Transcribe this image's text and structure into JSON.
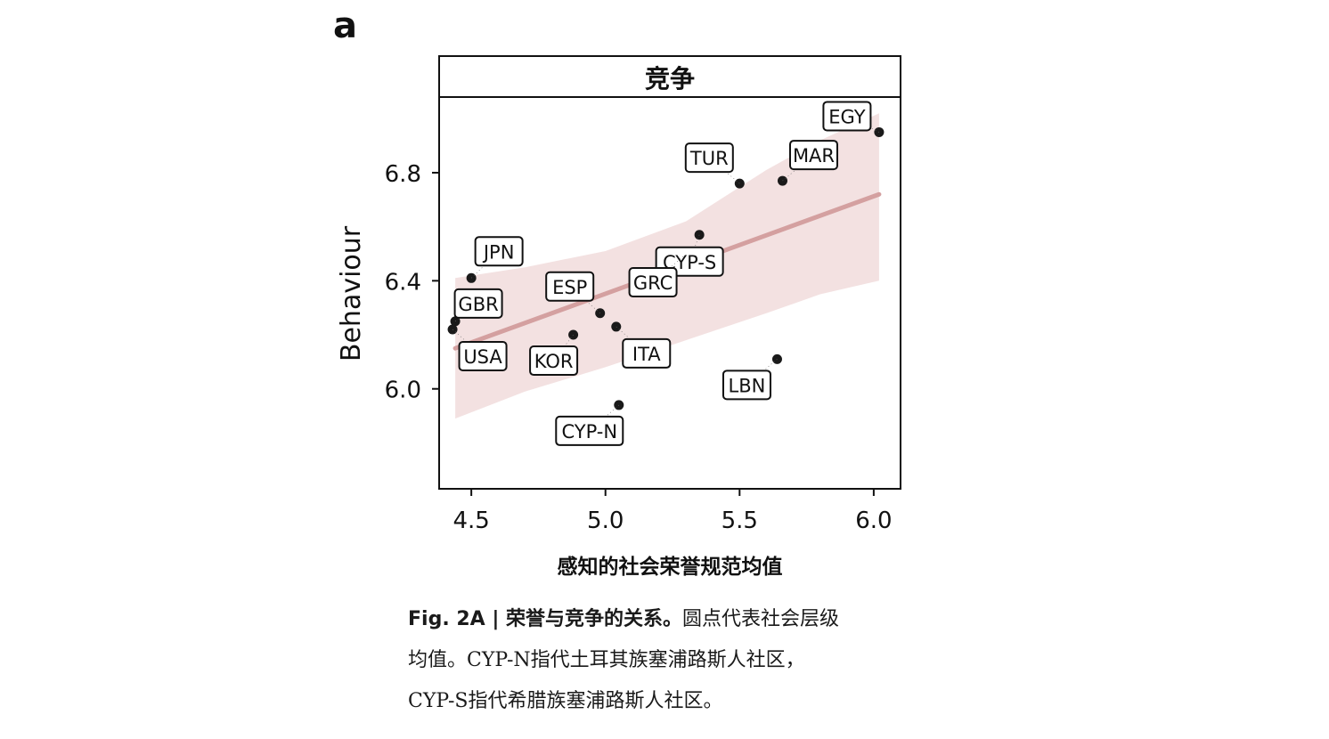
{
  "panel_letter": "a",
  "caption": {
    "fig_label": "Fig. 2A | ",
    "fig_title": "荣誉与竞争的关系。",
    "line1_rest": "圆点代表社会层级",
    "line2": "均值。CYP-N指代土耳其族塞浦路斯人社区，",
    "line3": "CYP-S指代希腊族塞浦路斯人社区。"
  },
  "chart_data": {
    "type": "scatter",
    "title": "竞争",
    "xlabel": "感知的社会荣誉规范均值",
    "ylabel": "Behaviour",
    "xlim": [
      4.38,
      6.1
    ],
    "ylim": [
      5.63,
      7.08
    ],
    "xticks": [
      4.5,
      5.0,
      5.5,
      6.0
    ],
    "xtick_labels": [
      "4.5",
      "5.0",
      "5.5",
      "6.0"
    ],
    "yticks": [
      6.0,
      6.4,
      6.8
    ],
    "ytick_labels": [
      "6.0",
      "6.4",
      "6.8"
    ],
    "grid": false,
    "points": [
      {
        "label": "EGY",
        "x": 6.02,
        "y": 6.95
      },
      {
        "label": "TUR",
        "x": 5.5,
        "y": 6.76
      },
      {
        "label": "MAR",
        "x": 5.66,
        "y": 6.77
      },
      {
        "label": "CYP-S",
        "x": 5.35,
        "y": 6.57
      },
      {
        "label": "GRC",
        "x": 5.29,
        "y": 6.49
      },
      {
        "label": "JPN",
        "x": 4.5,
        "y": 6.41
      },
      {
        "label": "GBR",
        "x": 4.44,
        "y": 6.25
      },
      {
        "label": "USA",
        "x": 4.43,
        "y": 6.22
      },
      {
        "label": "ESP",
        "x": 4.98,
        "y": 6.28
      },
      {
        "label": "ITA",
        "x": 5.04,
        "y": 6.23
      },
      {
        "label": "KOR",
        "x": 4.88,
        "y": 6.2
      },
      {
        "label": "LBN",
        "x": 5.64,
        "y": 6.11
      },
      {
        "label": "CYP-N",
        "x": 5.05,
        "y": 5.94
      }
    ],
    "fit_line": {
      "x": [
        4.44,
        6.02
      ],
      "y": [
        6.15,
        6.72
      ]
    },
    "confidence_band": {
      "x": [
        4.44,
        4.7,
        5.0,
        5.3,
        5.6,
        5.8,
        6.02
      ],
      "upper": [
        6.41,
        6.45,
        6.51,
        6.62,
        6.81,
        6.92,
        7.02
      ],
      "lower": [
        5.89,
        5.99,
        6.08,
        6.18,
        6.28,
        6.35,
        6.4
      ]
    },
    "colors": {
      "point": "#1a1a1a",
      "fit_line": "#d4a0a0",
      "band": "#f1dcdc",
      "frame": "#111111"
    }
  }
}
